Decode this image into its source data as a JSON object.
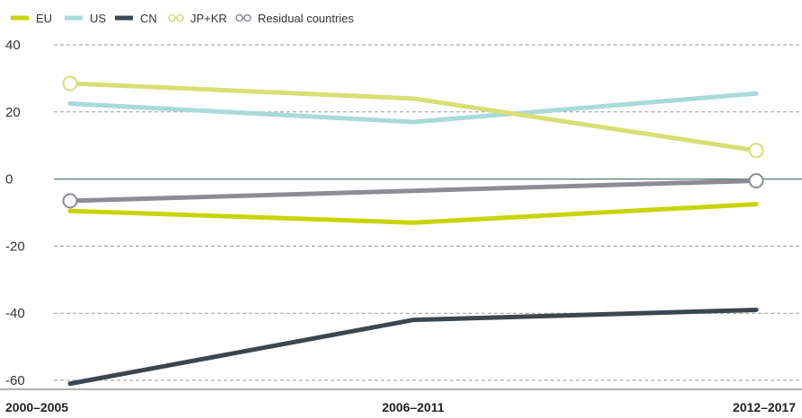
{
  "chart_data": {
    "type": "line",
    "categories": [
      "2000–2005",
      "2006–2011",
      "2012–2017"
    ],
    "ylim": [
      -60,
      40
    ],
    "yticks": [
      40,
      20,
      0,
      -20,
      -40,
      -60
    ],
    "grid": true,
    "legend_placement": "top-left",
    "series": [
      {
        "name": "EU",
        "values": [
          -9.5,
          -13,
          -7.5
        ],
        "color": "#c8d400",
        "markers": false
      },
      {
        "name": "US",
        "values": [
          22.5,
          17,
          25.5
        ],
        "color": "#a8dadb",
        "markers": false
      },
      {
        "name": "CN",
        "values": [
          -61,
          -42,
          -39
        ],
        "color": "#3a4650",
        "markers": false
      },
      {
        "name": "JP+KR",
        "values": [
          28.5,
          24,
          8.5
        ],
        "color": "#d8df73",
        "markers": true
      },
      {
        "name": "Residual countries",
        "values": [
          -6.5,
          -3.5,
          -0.5
        ],
        "color": "#8c8c94",
        "markers": true
      }
    ],
    "zero_line_color": "#4d7f6e"
  }
}
